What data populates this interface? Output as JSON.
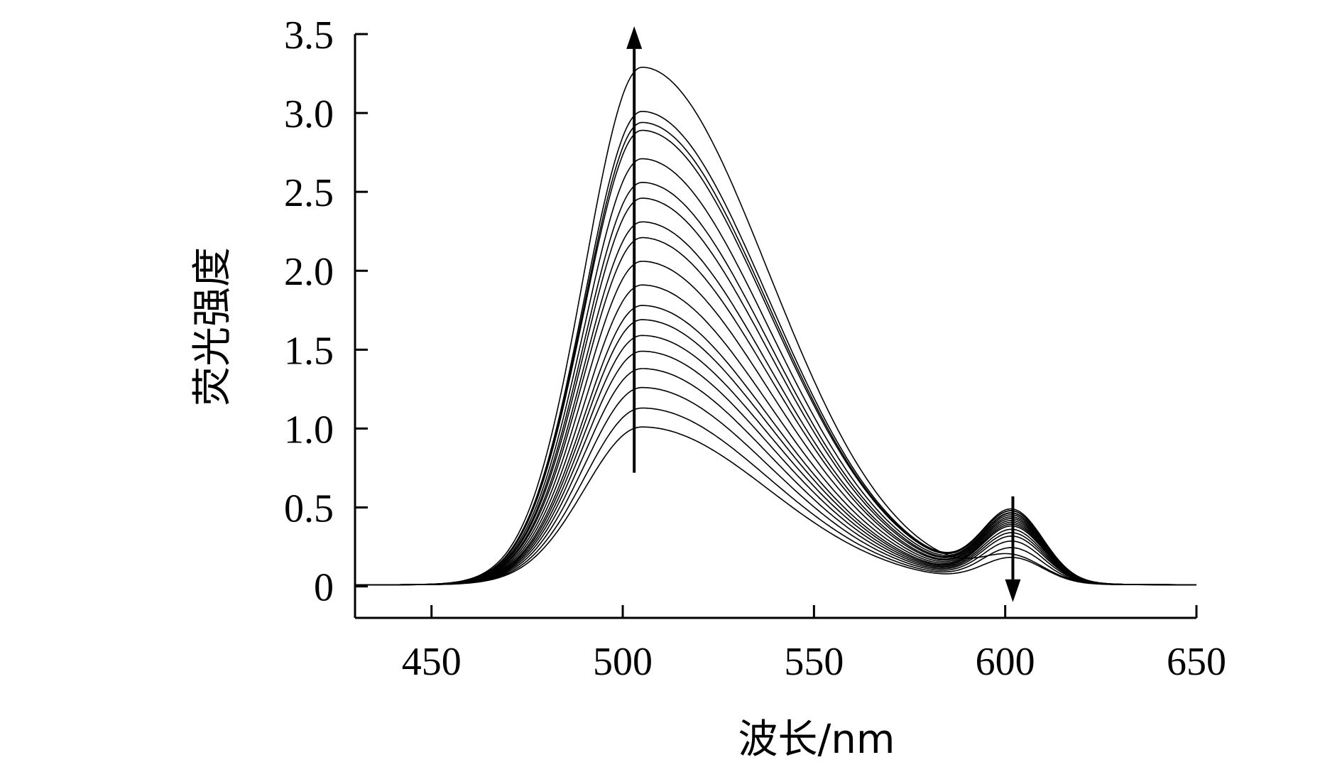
{
  "chart_data": {
    "type": "line",
    "title": "",
    "xlabel": "波长/nm",
    "ylabel": "荧光强度",
    "xlim": [
      430,
      650
    ],
    "ylim": [
      -0.2,
      3.5
    ],
    "xticks": [
      450,
      500,
      550,
      600,
      650
    ],
    "xtick_labels": [
      "450",
      "500",
      "550",
      "600",
      "650"
    ],
    "yticks": [
      0,
      0.5,
      1.0,
      1.5,
      2.0,
      2.5,
      3.0,
      3.5
    ],
    "ytick_labels": [
      "0",
      "0.5",
      "1.0",
      "1.5",
      "2.0",
      "2.5",
      "3.0",
      "3.5"
    ],
    "grid": false,
    "legend": "none",
    "main_peak_nm": 505,
    "secondary_peak_nm": 602,
    "series_peaks": [
      {
        "main": 1.0,
        "secondary": 0.16
      },
      {
        "main": 1.12,
        "secondary": 0.22
      },
      {
        "main": 1.25,
        "secondary": 0.26
      },
      {
        "main": 1.37,
        "secondary": 0.29
      },
      {
        "main": 1.48,
        "secondary": 0.31
      },
      {
        "main": 1.58,
        "secondary": 0.33
      },
      {
        "main": 1.68,
        "secondary": 0.35
      },
      {
        "main": 1.77,
        "secondary": 0.36
      },
      {
        "main": 1.9,
        "secondary": 0.37
      },
      {
        "main": 2.05,
        "secondary": 0.38
      },
      {
        "main": 2.2,
        "secondary": 0.39
      },
      {
        "main": 2.3,
        "secondary": 0.4
      },
      {
        "main": 2.45,
        "secondary": 0.41
      },
      {
        "main": 2.55,
        "secondary": 0.42
      },
      {
        "main": 2.7,
        "secondary": 0.42
      },
      {
        "main": 2.88,
        "secondary": 0.43
      },
      {
        "main": 2.93,
        "secondary": 0.43
      },
      {
        "main": 3.0,
        "secondary": 0.44
      },
      {
        "main": 3.28,
        "secondary": 0.15
      }
    ],
    "annotations": [
      {
        "type": "arrow",
        "direction": "up",
        "x_nm": 503,
        "y_from": 0.72,
        "y_to": 3.55
      },
      {
        "type": "arrow",
        "direction": "down",
        "x_nm": 602,
        "y_from": 0.57,
        "y_to": -0.1
      }
    ]
  }
}
